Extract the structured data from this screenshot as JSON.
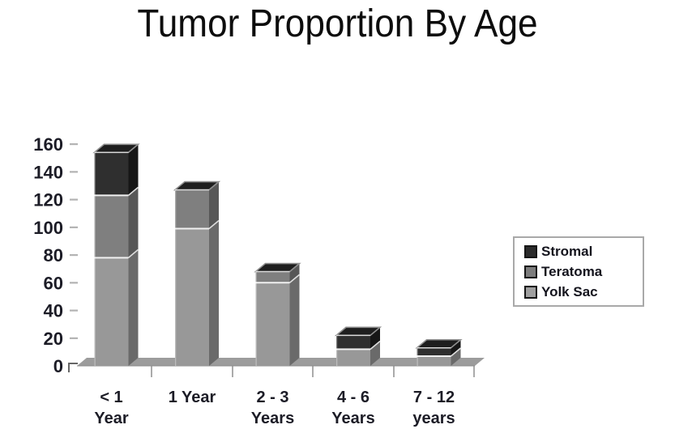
{
  "slide": {
    "background": "#ffffff"
  },
  "chart_data": {
    "type": "bar",
    "variant": "3d-stacked-column",
    "title": "Tumor Proportion By Age",
    "xlabel": "",
    "ylabel": "",
    "ylim": [
      0,
      160
    ],
    "yticks": [
      0,
      20,
      40,
      60,
      80,
      100,
      120,
      140,
      160
    ],
    "grid": false,
    "legend_position": "right",
    "stack_order_bottom_to_top": [
      "Yolk Sac",
      "Teratoma",
      "Stromal"
    ],
    "categories": [
      {
        "line1": "< 1",
        "line2": "Year"
      },
      {
        "line1": "1 Year",
        "line2": ""
      },
      {
        "line1": "2 - 3",
        "line2": "Years"
      },
      {
        "line1": "4 - 6",
        "line2": "Years"
      },
      {
        "line1": "7 - 12",
        "line2": "years"
      }
    ],
    "series": [
      {
        "name": "Stromal",
        "values": [
          31,
          0,
          0,
          10,
          6
        ],
        "front_color": "#2f2f2f",
        "side_color": "#161616",
        "legend_color": "#2b2b2b"
      },
      {
        "name": "Teratoma",
        "values": [
          45,
          28,
          8,
          0,
          0
        ],
        "front_color": "#7f7f7f",
        "side_color": "#575757",
        "legend_color": "#7c7c7c"
      },
      {
        "name": "Yolk Sac",
        "values": [
          78,
          99,
          60,
          12,
          7
        ],
        "front_color": "#989898",
        "side_color": "#6a6a6a",
        "legend_color": "#9f9f9f"
      }
    ],
    "colors": {
      "top_face": "#1e1e1e",
      "top_face_rim": "#8f8f8f",
      "floor": "#9c9c9c",
      "separator": "#f0f0f0",
      "axis_text": "#1c1c26",
      "tick_dash": "#b3b3b3",
      "axis_line": "#666666"
    }
  }
}
